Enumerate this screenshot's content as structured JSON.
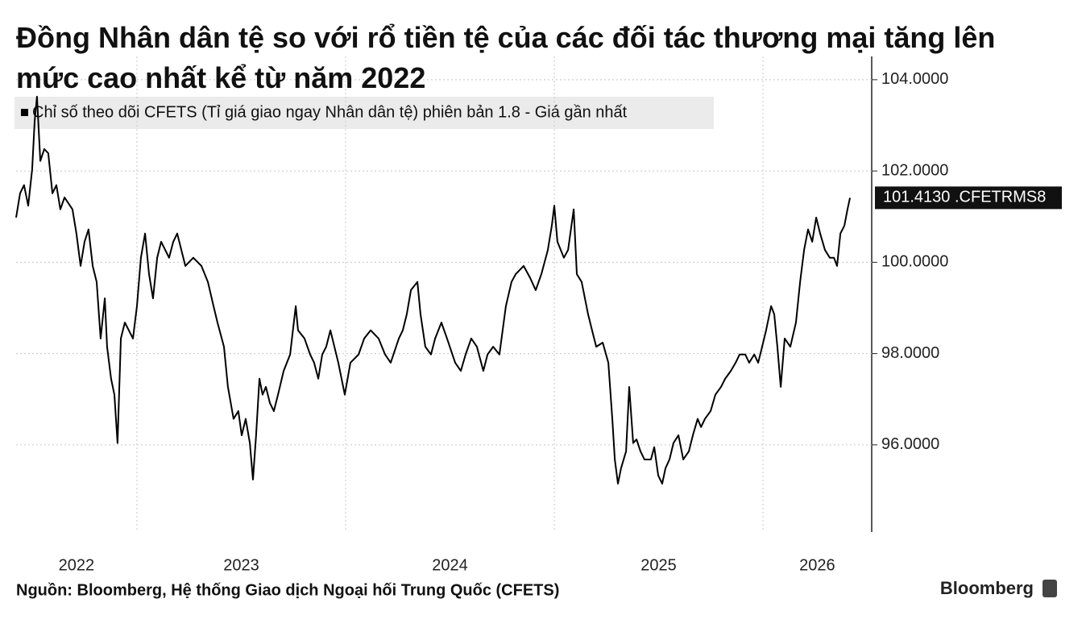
{
  "chart_data": {
    "type": "line",
    "title": "Đồng Nhân dân tệ so với rổ tiền tệ của các đối tác thương mại tăng lên mức cao nhất kể từ năm 2022",
    "source": "Nguồn: Bloomberg, Hệ thống Giao dịch Ngoại hối Trung Quốc (CFETS)",
    "brand": "Bloomberg",
    "last_value_label": "101.4130 .CFETRMS8",
    "xlim": [
      2022.421,
      2026.521
    ],
    "ylim": [
      94.09,
      104.51
    ],
    "xticks": [
      {
        "value": 2022.71,
        "label": "2022"
      },
      {
        "value": 2023.5,
        "label": "2023"
      },
      {
        "value": 2024.5,
        "label": "2024"
      },
      {
        "value": 2025.5,
        "label": "2025"
      },
      {
        "value": 2026.26,
        "label": "2026"
      }
    ],
    "xgrid": [
      2023,
      2024,
      2025,
      2026
    ],
    "yticks": [
      {
        "value": 96,
        "label": "96.0000"
      },
      {
        "value": 98,
        "label": "98.0000"
      },
      {
        "value": 100,
        "label": "100.0000"
      },
      {
        "value": 102,
        "label": "102.0000"
      },
      {
        "value": 104,
        "label": "104.0000"
      }
    ],
    "grid": true,
    "series": [
      {
        "name": "Chỉ số theo dõi CFETS (Tỉ giá giao ngay Nhân dân tệ) phiên bản 1.8  - Giá gần nhất",
        "color": "#000000",
        "x": [
          2022.421,
          2022.44,
          2022.459,
          2022.479,
          2022.498,
          2022.51,
          2022.521,
          2022.537,
          2022.556,
          2022.575,
          2022.595,
          2022.614,
          2022.633,
          2022.653,
          2022.691,
          2022.71,
          2022.73,
          2022.749,
          2022.768,
          2022.788,
          2022.807,
          2022.826,
          2022.846,
          2022.857,
          2022.876,
          2022.892,
          2022.907,
          2022.923,
          2022.942,
          2022.961,
          2022.981,
          2023.0,
          2023.019,
          2023.039,
          2023.058,
          2023.077,
          2023.097,
          2023.116,
          2023.154,
          2023.174,
          2023.193,
          2023.232,
          2023.27,
          2023.309,
          2023.34,
          2023.367,
          2023.386,
          2023.417,
          2023.436,
          2023.463,
          2023.486,
          2023.502,
          2023.521,
          2023.541,
          2023.556,
          2023.571,
          2023.587,
          2023.602,
          2023.618,
          2023.637,
          2023.656,
          2023.676,
          2023.703,
          2023.734,
          2023.761,
          2023.772,
          2023.803,
          2023.83,
          2023.849,
          2023.869,
          2023.888,
          2023.907,
          2023.927,
          2023.965,
          2023.996,
          2024.023,
          2024.062,
          2024.089,
          2024.12,
          2024.158,
          2024.189,
          2024.216,
          2024.255,
          2024.274,
          2024.293,
          2024.313,
          2024.344,
          2024.359,
          2024.382,
          2024.409,
          2024.429,
          2024.459,
          2024.486,
          2024.525,
          2024.552,
          2024.575,
          2024.602,
          2024.629,
          2024.66,
          2024.68,
          2024.707,
          2024.737,
          2024.768,
          2024.795,
          2024.815,
          2024.853,
          2024.884,
          2024.911,
          2024.938,
          2024.969,
          2024.988,
          2025.0,
          2025.015,
          2025.046,
          2025.066,
          2025.093,
          2025.108,
          2025.131,
          2025.162,
          2025.181,
          2025.201,
          2025.232,
          2025.259,
          2025.278,
          2025.29,
          2025.305,
          2025.32,
          2025.344,
          2025.359,
          2025.378,
          2025.394,
          2025.413,
          2025.432,
          2025.463,
          2025.479,
          2025.498,
          2025.517,
          2025.533,
          2025.552,
          2025.571,
          2025.595,
          2025.618,
          2025.645,
          2025.664,
          2025.687,
          2025.703,
          2025.722,
          2025.749,
          2025.772,
          2025.799,
          2025.819,
          2025.846,
          2025.869,
          2025.888,
          2025.915,
          2025.934,
          2025.958,
          2025.977,
          2025.996,
          2026.015,
          2026.039,
          2026.054,
          2026.069,
          2026.085,
          2026.104,
          2026.131,
          2026.158,
          2026.178,
          2026.197,
          2026.216,
          2026.236,
          2026.255,
          2026.274,
          2026.297,
          2026.32,
          2026.34,
          2026.355,
          2026.371,
          2026.39,
          2026.405,
          2026.417
        ],
        "values": [
          100.98,
          101.51,
          101.69,
          101.24,
          102.04,
          103.1,
          103.63,
          102.22,
          102.48,
          102.39,
          101.51,
          101.69,
          101.16,
          101.42,
          101.16,
          100.63,
          99.92,
          100.45,
          100.72,
          99.92,
          99.57,
          98.33,
          99.21,
          98.15,
          97.45,
          97.1,
          96.04,
          98.33,
          98.68,
          98.51,
          98.33,
          99.04,
          100.1,
          100.63,
          99.74,
          99.21,
          100.1,
          100.45,
          100.1,
          100.45,
          100.63,
          99.92,
          100.1,
          99.92,
          99.57,
          99.04,
          98.68,
          98.15,
          97.27,
          96.57,
          96.74,
          96.21,
          96.57,
          96.04,
          95.24,
          96.21,
          97.45,
          97.1,
          97.27,
          96.92,
          96.74,
          97.1,
          97.62,
          97.98,
          99.04,
          98.51,
          98.33,
          97.98,
          97.8,
          97.45,
          97.98,
          98.15,
          98.51,
          97.8,
          97.1,
          97.8,
          97.98,
          98.33,
          98.51,
          98.33,
          97.98,
          97.8,
          98.33,
          98.51,
          98.86,
          99.39,
          99.57,
          98.86,
          98.15,
          97.98,
          98.33,
          98.68,
          98.33,
          97.8,
          97.62,
          97.98,
          98.33,
          98.15,
          97.62,
          97.98,
          98.15,
          97.98,
          99.04,
          99.57,
          99.74,
          99.92,
          99.66,
          99.39,
          99.74,
          100.27,
          100.8,
          101.24,
          100.45,
          100.1,
          100.27,
          101.16,
          99.74,
          99.57,
          98.86,
          98.51,
          98.15,
          98.24,
          97.8,
          96.57,
          95.68,
          95.15,
          95.49,
          95.86,
          97.27,
          96.04,
          96.12,
          95.86,
          95.68,
          95.68,
          95.95,
          95.33,
          95.15,
          95.49,
          95.68,
          96.04,
          96.21,
          95.68,
          95.86,
          96.21,
          96.57,
          96.39,
          96.57,
          96.74,
          97.1,
          97.27,
          97.45,
          97.62,
          97.8,
          97.98,
          97.98,
          97.8,
          97.98,
          97.8,
          98.15,
          98.51,
          99.04,
          98.86,
          98.15,
          97.27,
          98.33,
          98.15,
          98.68,
          99.57,
          100.27,
          100.72,
          100.45,
          100.98,
          100.63,
          100.27,
          100.1,
          100.1,
          99.92,
          100.63,
          100.8,
          101.16,
          101.413
        ]
      }
    ]
  }
}
